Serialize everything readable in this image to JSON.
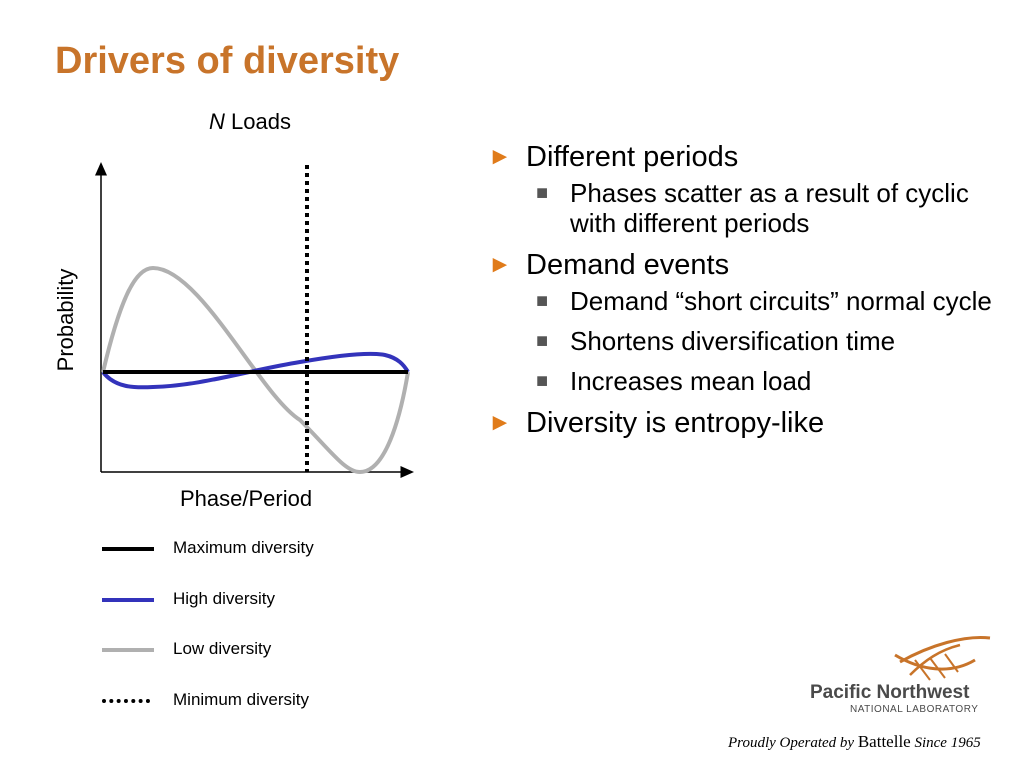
{
  "title": "Drivers of diversity",
  "chart": {
    "title_var": "N",
    "title_rest": "Loads",
    "xlabel": "Phase/Period",
    "ylabel": "Probability"
  },
  "legend": [
    {
      "label": "Maximum diversity",
      "color": "#000000",
      "style": "solid"
    },
    {
      "label": "High diversity",
      "color": "#3333bb",
      "style": "solid"
    },
    {
      "label": "Low diversity",
      "color": "#b0b0b0",
      "style": "solid"
    },
    {
      "label": "Minimum diversity",
      "color": "#000000",
      "style": "dotted"
    }
  ],
  "bullets": [
    {
      "text": "Different periods",
      "sub": [
        "Phases scatter as a result of cyclic with different periods"
      ]
    },
    {
      "text": "Demand events",
      "sub": [
        "Demand “short circuits” normal cycle",
        "Shortens diversification time",
        "Increases mean load"
      ]
    },
    {
      "text": "Diversity is entropy-like",
      "sub": []
    }
  ],
  "markers": {
    "l1": "►",
    "l2": "■"
  },
  "logo": {
    "name": "Pacific Northwest",
    "sub": "NATIONAL LABORATORY"
  },
  "footer": {
    "pre": "Proudly Operated by",
    "brand": "Battelle",
    "post": "Since 1965"
  },
  "colors": {
    "title": "#c8742a",
    "bullet_marker": "#e07b1a",
    "high": "#3333bb",
    "low": "#b0b0b0"
  }
}
